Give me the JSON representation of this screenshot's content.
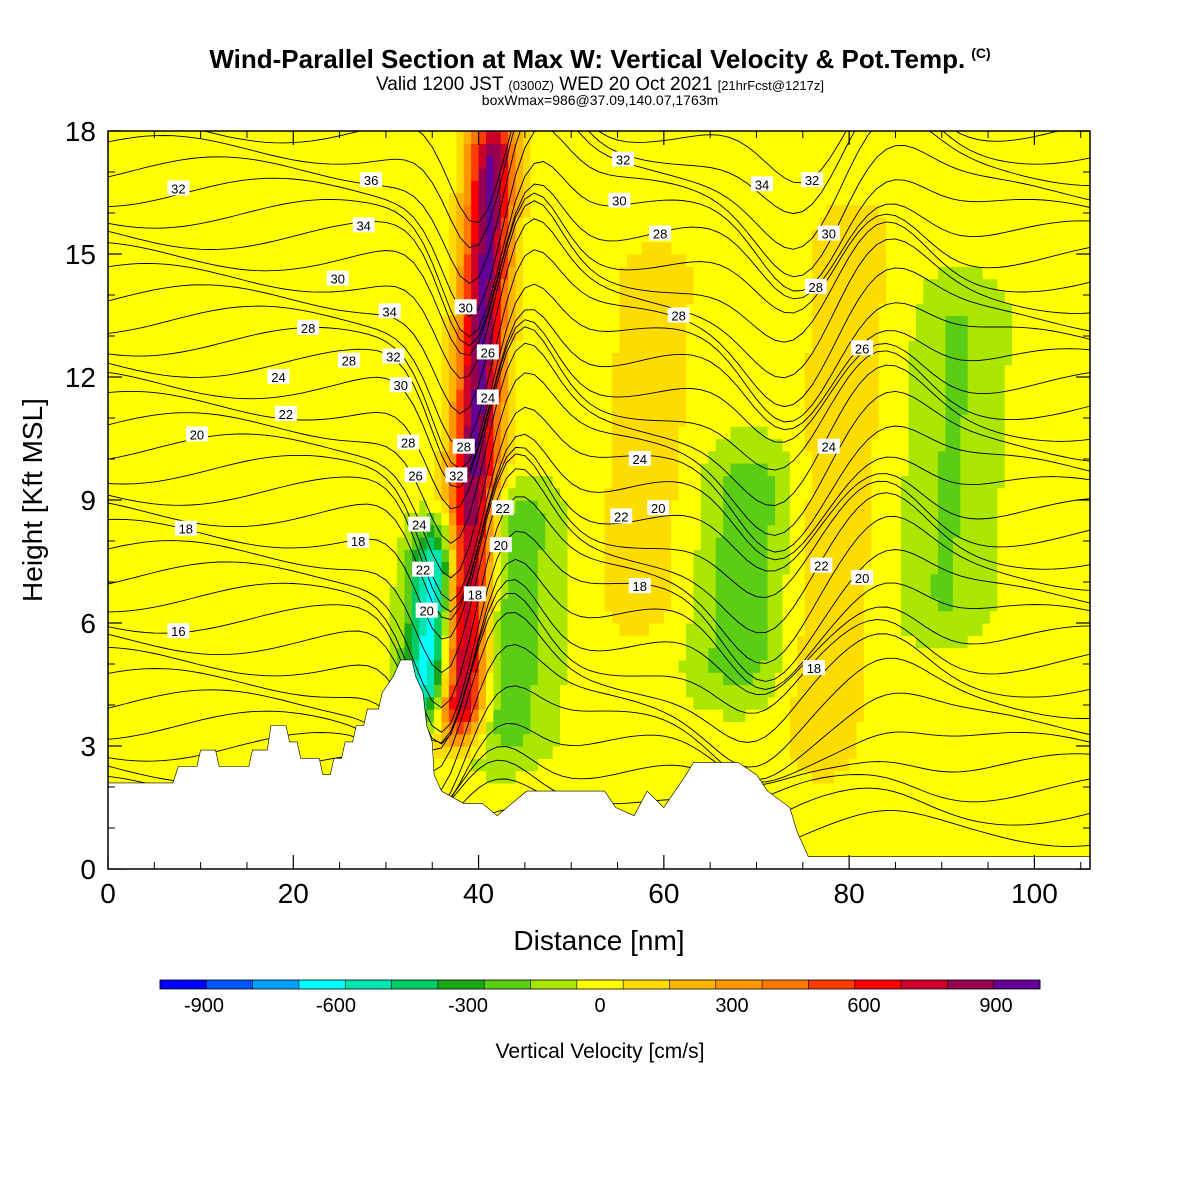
{
  "header": {
    "title": "Wind-Parallel Section at Max W: Vertical Velocity & Pot.Temp.",
    "copyright": "(C)",
    "valid_prefix": "Valid 1200 JST",
    "valid_utc": "(0300Z)",
    "valid_date": "WED 20 Oct 2021",
    "forecast": "[21hrFcst@1217z]",
    "boxinfo": "boxWmax=986@37.09,140.07,1763m"
  },
  "chart_data": {
    "type": "heatmap",
    "xlabel": "Distance [nm]",
    "ylabel": "Height [Kft MSL]",
    "xlim": [
      0,
      106
    ],
    "ylim": [
      0,
      18
    ],
    "xticks": [
      0,
      20,
      40,
      60,
      80,
      100
    ],
    "yticks": [
      0,
      3,
      6,
      9,
      12,
      15,
      18
    ],
    "colorbar": {
      "label": "Vertical Velocity [cm/s]",
      "tick_labels": [
        "-900",
        "-600",
        "-300",
        "0",
        "300",
        "600",
        "900"
      ],
      "tick_values": [
        -900,
        -600,
        -300,
        0,
        300,
        600,
        900
      ],
      "levels": [
        -1000,
        -800,
        -700,
        -600,
        -500,
        -400,
        -300,
        -200,
        -100,
        0,
        100,
        200,
        300,
        400,
        500,
        600,
        700,
        800,
        900,
        1000
      ],
      "colors": [
        "#0000ff",
        "#0055ff",
        "#00a0ff",
        "#00ffff",
        "#00e6b0",
        "#00cd66",
        "#18a818",
        "#5acd14",
        "#aae600",
        "#ffff00",
        "#ffdc00",
        "#ffb400",
        "#ff9600",
        "#ff7800",
        "#ff3c00",
        "#ff0000",
        "#cd0028",
        "#960050",
        "#640096"
      ]
    },
    "vertical_velocity_features": [
      {
        "x": 34.5,
        "y_bottom": 4,
        "y_top": 8,
        "value": -850
      },
      {
        "x": 38,
        "y_bottom": 3.5,
        "y_top": 18,
        "value": 900
      },
      {
        "x": 42.5,
        "y_bottom": 3,
        "y_top": 9,
        "value": -250
      },
      {
        "x": 68,
        "y_bottom": 4.5,
        "y_top": 10,
        "value": -250
      },
      {
        "x": 90,
        "y_bottom": 6,
        "y_top": 14,
        "value": -150
      },
      {
        "x": 57,
        "y_bottom": 6,
        "y_top": 15,
        "value": 150
      },
      {
        "x": 77,
        "y_bottom": 2.5,
        "y_top": 16,
        "value": 150
      }
    ],
    "terrain": [
      [
        0,
        2.1
      ],
      [
        7,
        2.1
      ],
      [
        7.6,
        2.5
      ],
      [
        9.6,
        2.5
      ],
      [
        10,
        2.9
      ],
      [
        11.6,
        2.9
      ],
      [
        12,
        2.5
      ],
      [
        15.2,
        2.5
      ],
      [
        15.6,
        2.9
      ],
      [
        17.2,
        2.9
      ],
      [
        17.6,
        3.5
      ],
      [
        19.2,
        3.5
      ],
      [
        19.6,
        3.1
      ],
      [
        20.4,
        3.1
      ],
      [
        20.8,
        2.7
      ],
      [
        22.8,
        2.7
      ],
      [
        23.2,
        2.3
      ],
      [
        24,
        2.3
      ],
      [
        24.4,
        2.7
      ],
      [
        25.2,
        2.7
      ],
      [
        25.6,
        3.1
      ],
      [
        26.4,
        3.1
      ],
      [
        26.8,
        3.5
      ],
      [
        27.6,
        3.5
      ],
      [
        28,
        3.9
      ],
      [
        29.2,
        3.9
      ],
      [
        29.6,
        4.3
      ],
      [
        30.8,
        4.7
      ],
      [
        31.6,
        5.1
      ],
      [
        32.8,
        5.1
      ],
      [
        33.2,
        4.7
      ],
      [
        34,
        4.3
      ],
      [
        34.4,
        3.5
      ],
      [
        35,
        3.1
      ],
      [
        35.2,
        2.3
      ],
      [
        36,
        1.9
      ],
      [
        38.4,
        1.6
      ],
      [
        40.4,
        1.6
      ],
      [
        42,
        1.3
      ],
      [
        43.6,
        1.6
      ],
      [
        45.2,
        1.9
      ],
      [
        53.6,
        1.9
      ],
      [
        54.8,
        1.5
      ],
      [
        56.8,
        1.3
      ],
      [
        58.2,
        1.9
      ],
      [
        60,
        1.5
      ],
      [
        61.2,
        1.9
      ],
      [
        62.4,
        2.3
      ],
      [
        63.2,
        2.6
      ],
      [
        68,
        2.6
      ],
      [
        70,
        2.3
      ],
      [
        71.2,
        1.9
      ],
      [
        73.6,
        1.5
      ],
      [
        74.4,
        0.9
      ],
      [
        75.6,
        0.3
      ],
      [
        106,
        0.3
      ]
    ],
    "contour_labels": [
      {
        "text": "32",
        "x": 7.6,
        "y": 16.6
      },
      {
        "text": "36",
        "x": 28.4,
        "y": 16.8
      },
      {
        "text": "34",
        "x": 27.6,
        "y": 15.7
      },
      {
        "text": "30",
        "x": 24.8,
        "y": 14.4
      },
      {
        "text": "34",
        "x": 30.4,
        "y": 13.6
      },
      {
        "text": "28",
        "x": 21.6,
        "y": 13.2
      },
      {
        "text": "28",
        "x": 26,
        "y": 12.4
      },
      {
        "text": "32",
        "x": 30.8,
        "y": 12.5
      },
      {
        "text": "24",
        "x": 18.4,
        "y": 12
      },
      {
        "text": "30",
        "x": 31.6,
        "y": 11.8
      },
      {
        "text": "22",
        "x": 19.2,
        "y": 11.1
      },
      {
        "text": "20",
        "x": 9.6,
        "y": 10.6
      },
      {
        "text": "28",
        "x": 32.4,
        "y": 10.4
      },
      {
        "text": "26",
        "x": 33.2,
        "y": 9.6
      },
      {
        "text": "24",
        "x": 33.6,
        "y": 8.4
      },
      {
        "text": "22",
        "x": 34,
        "y": 7.3
      },
      {
        "text": "20",
        "x": 34.4,
        "y": 6.3
      },
      {
        "text": "18",
        "x": 8.4,
        "y": 8.3
      },
      {
        "text": "18",
        "x": 27,
        "y": 8
      },
      {
        "text": "16",
        "x": 7.6,
        "y": 5.8
      },
      {
        "text": "30",
        "x": 38.6,
        "y": 13.7
      },
      {
        "text": "26",
        "x": 41,
        "y": 12.6
      },
      {
        "text": "24",
        "x": 41,
        "y": 11.5
      },
      {
        "text": "28",
        "x": 38.4,
        "y": 10.3
      },
      {
        "text": "32",
        "x": 37.6,
        "y": 9.6
      },
      {
        "text": "22",
        "x": 42.6,
        "y": 8.8
      },
      {
        "text": "20",
        "x": 42.4,
        "y": 7.9
      },
      {
        "text": "18",
        "x": 39.6,
        "y": 6.7
      },
      {
        "text": "32",
        "x": 55.6,
        "y": 17.3
      },
      {
        "text": "30",
        "x": 55.2,
        "y": 16.3
      },
      {
        "text": "28",
        "x": 59.6,
        "y": 15.5
      },
      {
        "text": "28",
        "x": 61.6,
        "y": 13.5
      },
      {
        "text": "24",
        "x": 57.4,
        "y": 10
      },
      {
        "text": "22",
        "x": 55.4,
        "y": 8.6
      },
      {
        "text": "20",
        "x": 59.4,
        "y": 8.8
      },
      {
        "text": "18",
        "x": 57.4,
        "y": 6.9
      },
      {
        "text": "34",
        "x": 70.6,
        "y": 16.7
      },
      {
        "text": "32",
        "x": 76,
        "y": 16.8
      },
      {
        "text": "30",
        "x": 77.8,
        "y": 15.5
      },
      {
        "text": "28",
        "x": 76.4,
        "y": 14.2
      },
      {
        "text": "26",
        "x": 81.4,
        "y": 12.7
      },
      {
        "text": "24",
        "x": 77.8,
        "y": 10.3
      },
      {
        "text": "22",
        "x": 77,
        "y": 7.4
      },
      {
        "text": "20",
        "x": 81.4,
        "y": 7.1
      },
      {
        "text": "18",
        "x": 76.2,
        "y": 4.9
      }
    ]
  }
}
